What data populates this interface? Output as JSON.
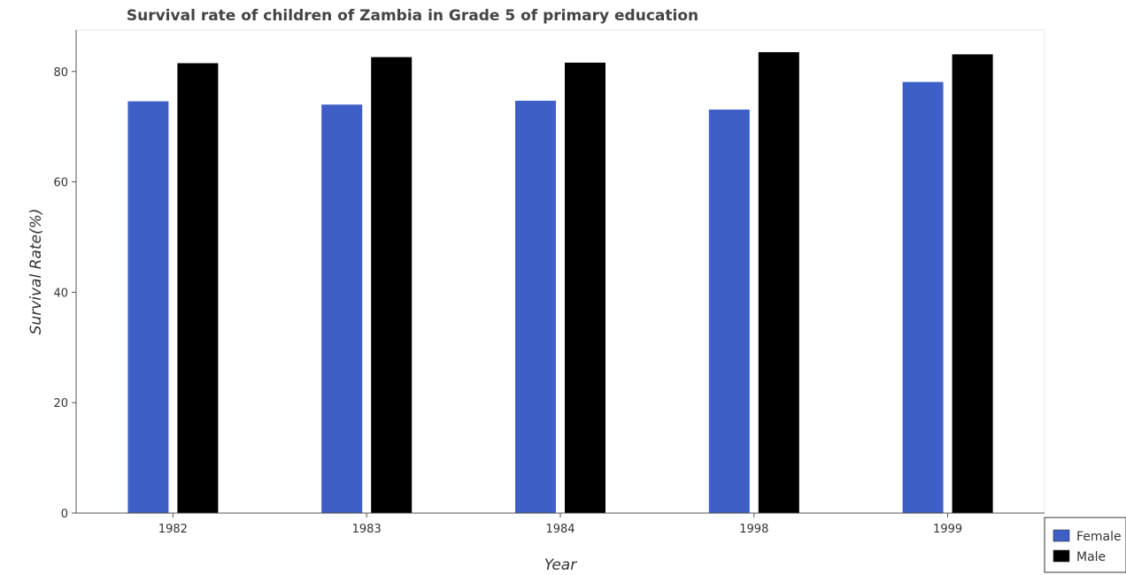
{
  "chart_data": {
    "type": "bar",
    "title": "Survival rate of children of Zambia in Grade 5 of primary education",
    "xlabel": "Year",
    "ylabel": "Survival Rate(%)",
    "categories": [
      "1982",
      "1983",
      "1984",
      "1998",
      "1999"
    ],
    "series": [
      {
        "name": "Female",
        "color": "#3d5fc6",
        "values": [
          74.6,
          74.0,
          74.7,
          73.1,
          78.1
        ]
      },
      {
        "name": "Male",
        "color": "#000000",
        "values": [
          81.5,
          82.6,
          81.6,
          83.5,
          83.1
        ]
      }
    ],
    "ylim": [
      0,
      87.5
    ],
    "yticks": [
      0,
      20,
      40,
      60,
      80
    ],
    "grid": false,
    "legend_position": "bottom-right"
  }
}
